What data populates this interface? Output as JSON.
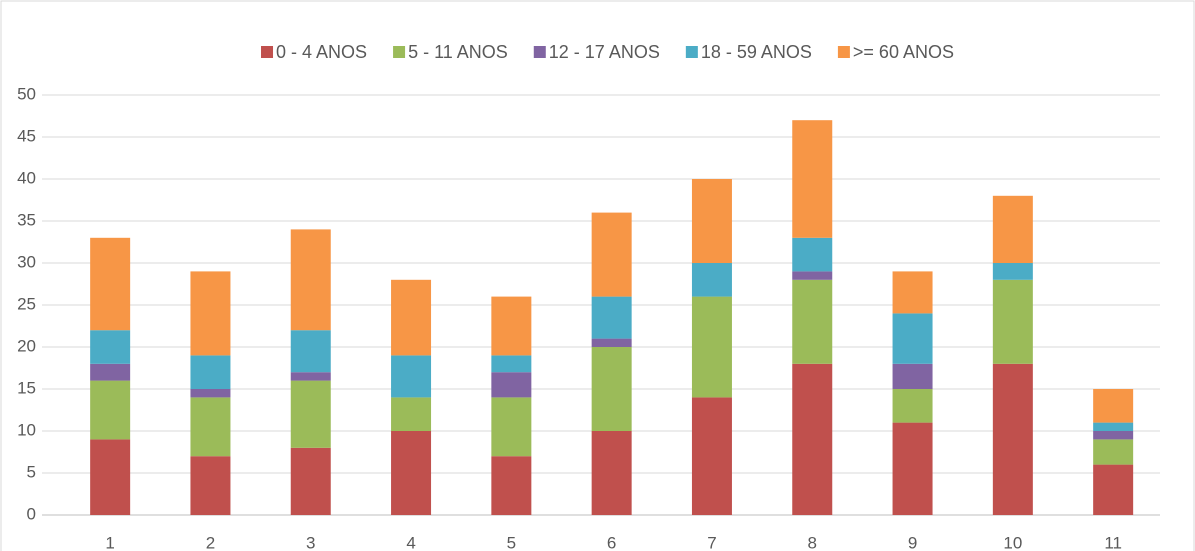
{
  "chart_data": {
    "type": "stacked_bar",
    "categories": [
      "1",
      "2",
      "3",
      "4",
      "5",
      "6",
      "7",
      "8",
      "9",
      "10",
      "11"
    ],
    "series": [
      {
        "name": "0 - 4 ANOS",
        "color": "#c0504d",
        "values": [
          9,
          7,
          8,
          10,
          7,
          10,
          14,
          18,
          11,
          18,
          6
        ]
      },
      {
        "name": "5 - 11 ANOS",
        "color": "#9bbb59",
        "values": [
          7,
          7,
          8,
          4,
          7,
          10,
          12,
          10,
          4,
          10,
          3
        ]
      },
      {
        "name": "12 - 17 ANOS",
        "color": "#8064a2",
        "values": [
          2,
          1,
          1,
          0,
          3,
          1,
          0,
          1,
          3,
          0,
          1
        ]
      },
      {
        "name": "18 - 59 ANOS",
        "color": "#4bacc6",
        "values": [
          4,
          4,
          5,
          5,
          2,
          5,
          4,
          4,
          6,
          2,
          1
        ]
      },
      {
        "name": ">= 60 ANOS",
        "color": "#f79646",
        "values": [
          11,
          10,
          12,
          9,
          7,
          10,
          10,
          14,
          5,
          8,
          4
        ]
      }
    ],
    "ylim": [
      0,
      50
    ],
    "yticks": [
      0,
      5,
      10,
      15,
      20,
      25,
      30,
      35,
      40,
      45,
      50
    ],
    "grid": true,
    "legend": "top"
  }
}
